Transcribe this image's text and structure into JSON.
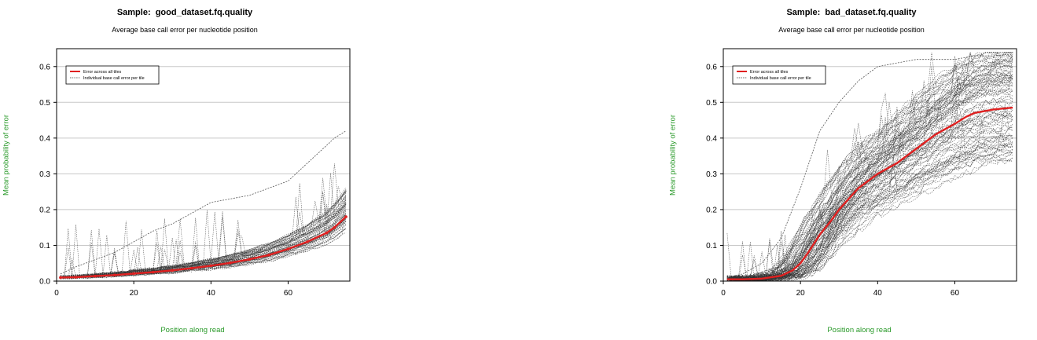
{
  "chart_data": [
    {
      "type": "line",
      "title": "Sample:  good_dataset.fq.quality",
      "subtitle": "Average base call error per nucleotide position",
      "xlabel": "Position along read",
      "ylabel": "Mean probability of error",
      "xlim": [
        0,
        76
      ],
      "ylim": [
        0,
        0.65
      ],
      "x_ticks": [
        "0",
        "20",
        "40",
        "60"
      ],
      "y_ticks": [
        "0.0",
        "0.1",
        "0.2",
        "0.3",
        "0.4",
        "0.5",
        "0.6"
      ],
      "grid": "horizontal",
      "legend": {
        "position": "top-left",
        "entries": [
          "Error across all tiles",
          "Individual base call error per tile"
        ]
      },
      "series": [
        {
          "name": "Error across all tiles",
          "color": "#e02020",
          "x": [
            1,
            5,
            10,
            15,
            20,
            25,
            30,
            35,
            40,
            45,
            50,
            55,
            60,
            65,
            70,
            72,
            75
          ],
          "values": [
            0.01,
            0.011,
            0.014,
            0.017,
            0.021,
            0.025,
            0.03,
            0.036,
            0.043,
            0.051,
            0.061,
            0.073,
            0.09,
            0.11,
            0.135,
            0.15,
            0.18
          ]
        },
        {
          "name": "Individual base call error per tile",
          "color": "#555555",
          "x": [
            1,
            5,
            10,
            15,
            20,
            25,
            30,
            35,
            40,
            45,
            50,
            55,
            60,
            65,
            70,
            72,
            75
          ],
          "values": [
            0.02,
            0.04,
            0.06,
            0.08,
            0.11,
            0.14,
            0.16,
            0.19,
            0.22,
            0.23,
            0.24,
            0.26,
            0.28,
            0.33,
            0.38,
            0.4,
            0.42
          ]
        }
      ]
    },
    {
      "type": "line",
      "title": "Sample:  bad_dataset.fq.quality",
      "subtitle": "Average base call error per nucleotide position",
      "xlabel": "Position along read",
      "ylabel": "Mean probability of error",
      "xlim": [
        0,
        76
      ],
      "ylim": [
        0,
        0.65
      ],
      "x_ticks": [
        "0",
        "20",
        "40",
        "60"
      ],
      "y_ticks": [
        "0.0",
        "0.1",
        "0.2",
        "0.3",
        "0.4",
        "0.5",
        "0.6"
      ],
      "grid": "horizontal",
      "legend": {
        "position": "top-left",
        "entries": [
          "Error across all tiles",
          "Individual base call error per tile"
        ]
      },
      "series": [
        {
          "name": "Error across all tiles",
          "color": "#e02020",
          "x": [
            1,
            5,
            10,
            15,
            18,
            20,
            22,
            25,
            28,
            30,
            35,
            40,
            45,
            50,
            55,
            60,
            63,
            65,
            70,
            75
          ],
          "values": [
            0.005,
            0.005,
            0.007,
            0.015,
            0.03,
            0.05,
            0.08,
            0.13,
            0.17,
            0.2,
            0.26,
            0.3,
            0.33,
            0.37,
            0.41,
            0.44,
            0.46,
            0.47,
            0.48,
            0.485
          ]
        },
        {
          "name": "Individual base call error per tile",
          "color": "#555555",
          "x": [
            1,
            5,
            10,
            15,
            20,
            25,
            30,
            35,
            40,
            45,
            50,
            55,
            60,
            65,
            70,
            75
          ],
          "values": [
            0.01,
            0.02,
            0.05,
            0.12,
            0.26,
            0.42,
            0.5,
            0.56,
            0.6,
            0.61,
            0.62,
            0.62,
            0.62,
            0.63,
            0.63,
            0.635
          ]
        }
      ]
    }
  ]
}
